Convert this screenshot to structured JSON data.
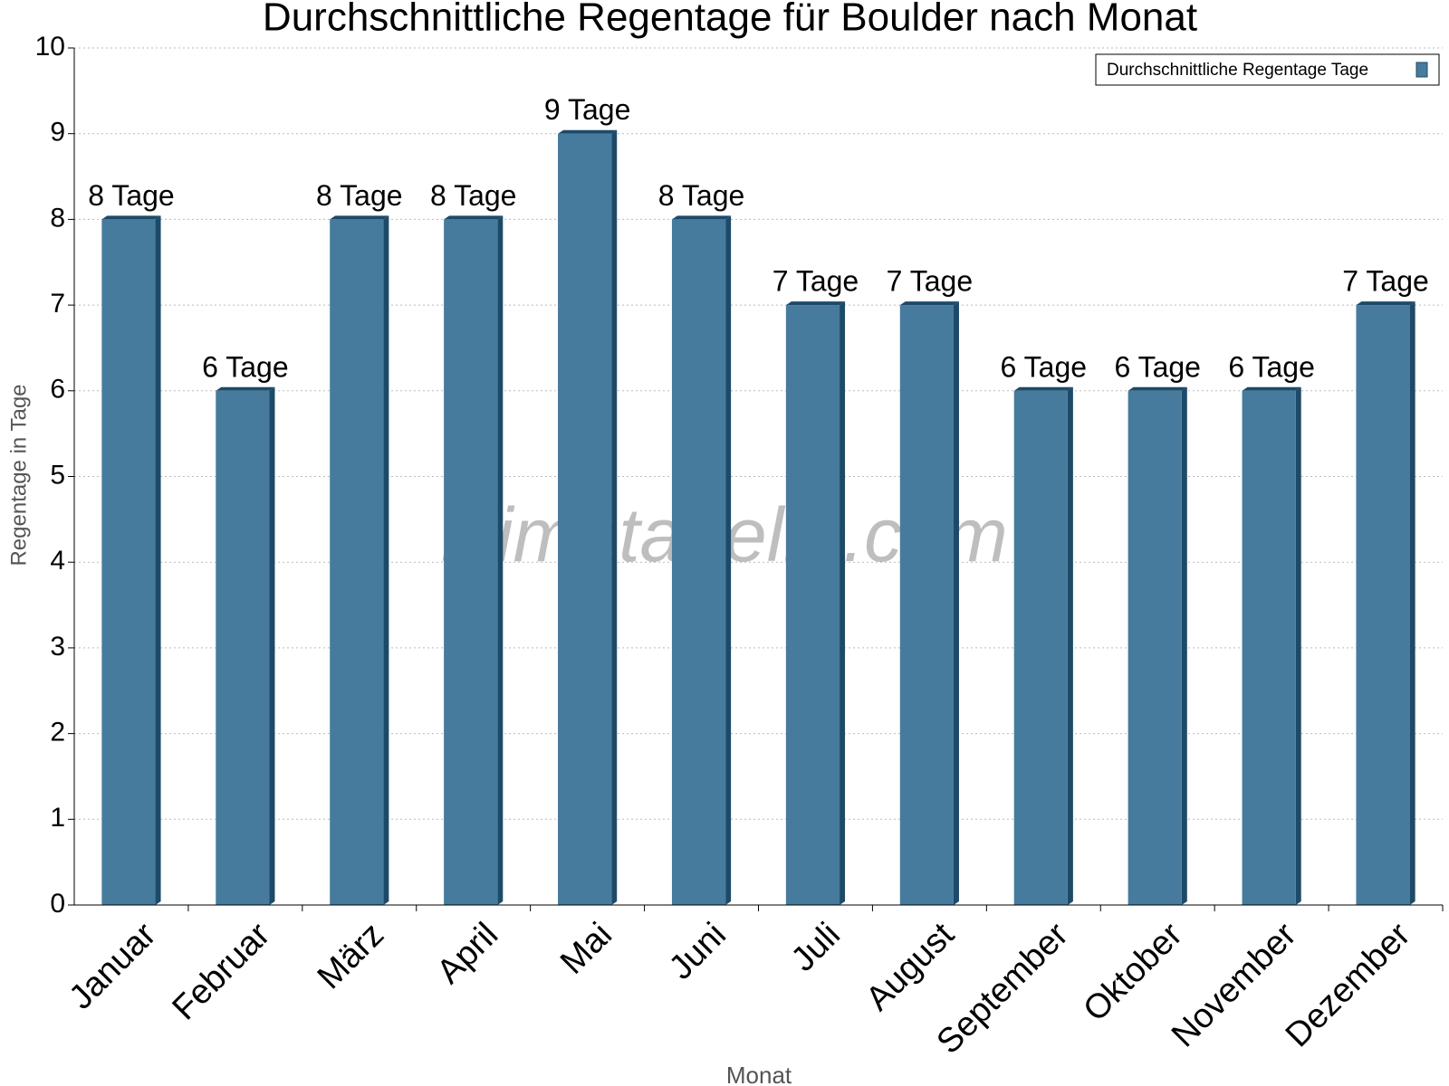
{
  "chart_data": {
    "type": "bar",
    "title": "Durchschnittliche Regentage für Boulder nach Monat",
    "x_label": "Monat",
    "y_label": "Regentage in Tage",
    "watermark": "klimatabelle.com",
    "categories": [
      "Januar",
      "Februar",
      "März",
      "April",
      "Mai",
      "Juni",
      "Juli",
      "August",
      "September",
      "Oktober",
      "November",
      "Dezember"
    ],
    "series": [
      {
        "name": "Durchschnittliche Regentage Tage",
        "color": "#467b9d",
        "values": [
          8,
          6,
          8,
          8,
          9,
          8,
          7,
          7,
          6,
          6,
          6,
          7
        ],
        "value_labels": [
          "8 Tage",
          "6 Tage",
          "8 Tage",
          "8 Tage",
          "9 Tage",
          "8 Tage",
          "7 Tage",
          "7 Tage",
          "6 Tage",
          "6 Tage",
          "6 Tage",
          "7 Tage"
        ]
      }
    ],
    "ylim": [
      0,
      10
    ],
    "yticks": [
      0,
      1,
      2,
      3,
      4,
      5,
      6,
      7,
      8,
      9,
      10
    ],
    "grid": true,
    "legend": "top-right"
  }
}
